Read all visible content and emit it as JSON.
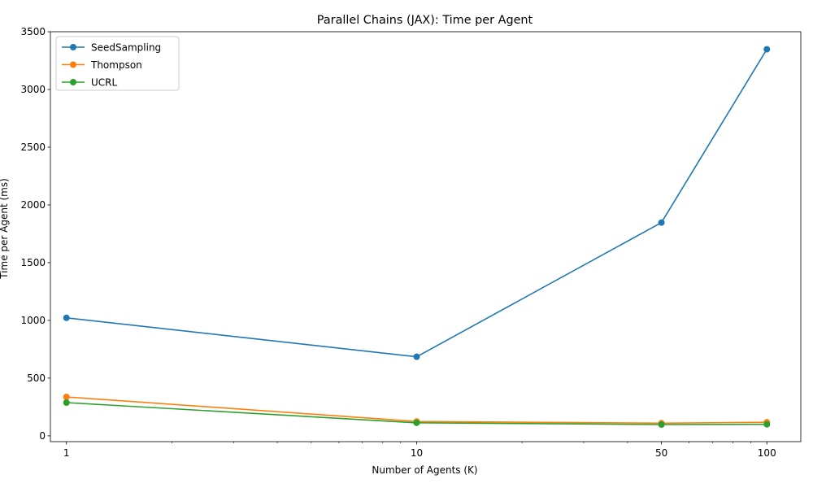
{
  "chart_data": {
    "type": "line",
    "title": "Parallel Chains (JAX): Time per Agent",
    "xlabel": "Number of Agents (K)",
    "ylabel": "Time per Agent (ms)",
    "x_scale": "log",
    "x": [
      1,
      10,
      50,
      100
    ],
    "x_tick_labels": [
      "1",
      "10",
      "50",
      "100"
    ],
    "xlim": [
      0.9,
      125
    ],
    "ylim": [
      -50,
      3500
    ],
    "y_ticks": [
      0,
      500,
      1000,
      1500,
      2000,
      2500,
      3000,
      3500
    ],
    "grid": false,
    "legend_position": "top-left",
    "series": [
      {
        "name": "SeedSampling",
        "color": "#1f77b4",
        "values": [
          1022,
          685,
          1847,
          3348
        ]
      },
      {
        "name": "Thompson",
        "color": "#ff7f0e",
        "values": [
          337,
          125,
          110,
          118
        ]
      },
      {
        "name": "UCRL",
        "color": "#2ca02c",
        "values": [
          288,
          113,
          98,
          100
        ]
      }
    ]
  }
}
